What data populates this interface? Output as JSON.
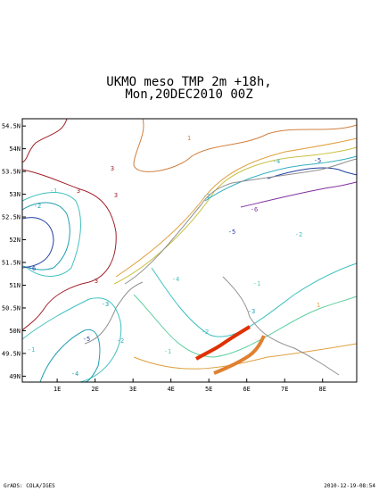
{
  "header": {
    "title": "UKMO meso TMP 2m +18h,",
    "subtitle": "Mon,20DEC2010 00Z"
  },
  "map": {
    "xlim": [
      0.08,
      8.9
    ],
    "ylim": [
      48.87,
      54.66
    ],
    "xticks": [
      {
        "value": 1,
        "label": "1E"
      },
      {
        "value": 2,
        "label": "2E"
      },
      {
        "value": 3,
        "label": "3E"
      },
      {
        "value": 4,
        "label": "4E"
      },
      {
        "value": 5,
        "label": "5E"
      },
      {
        "value": 6,
        "label": "6E"
      },
      {
        "value": 7,
        "label": "7E"
      },
      {
        "value": 8,
        "label": "8E"
      }
    ],
    "yticks": [
      {
        "value": 49,
        "label": "49N"
      },
      {
        "value": 49.5,
        "label": "49.5N"
      },
      {
        "value": 50,
        "label": "50N"
      },
      {
        "value": 50.5,
        "label": "50.5N"
      },
      {
        "value": 51,
        "label": "51N"
      },
      {
        "value": 51.5,
        "label": "51.5N"
      },
      {
        "value": 52,
        "label": "52N"
      },
      {
        "value": 52.5,
        "label": "52.5N"
      },
      {
        "value": 53,
        "label": "53N"
      },
      {
        "value": 53.5,
        "label": "53.5N"
      },
      {
        "value": 54,
        "label": "54N"
      },
      {
        "value": 54.5,
        "label": "54.5N"
      }
    ],
    "contour_labels": [
      "1",
      "3",
      "3",
      "3",
      "-1",
      "-6",
      "-2",
      "-4",
      "-5",
      "-3",
      "-2",
      "-6",
      "-5",
      "-2",
      "-4",
      "-5",
      "-2",
      "-1",
      "-3",
      "3",
      "1",
      "-1",
      "-2",
      "-4",
      "-1"
    ]
  },
  "footer": {
    "left": "GrADS: COLA/IGES",
    "right": "2010-12-19-08:54"
  }
}
